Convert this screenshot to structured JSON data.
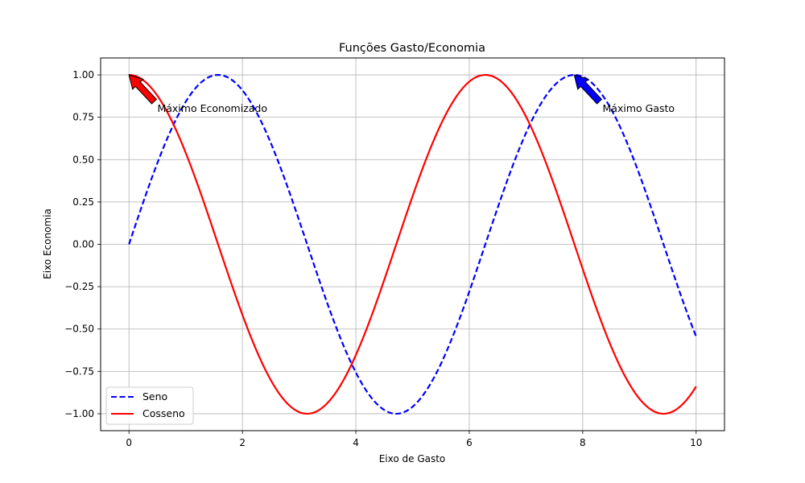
{
  "chart_data": {
    "type": "line",
    "title": "Funções Gasto/Economia",
    "xlabel": "Eixo de Gasto",
    "ylabel": "Eixo Economia",
    "xlim": [
      -0.5,
      10.5
    ],
    "ylim": [
      -1.1,
      1.1
    ],
    "xticks": [
      0,
      2,
      4,
      6,
      8,
      10
    ],
    "xtick_labels": [
      "0",
      "2",
      "4",
      "6",
      "8",
      "10"
    ],
    "yticks": [
      1.0,
      0.75,
      0.5,
      0.25,
      0.0,
      -0.25,
      -0.5,
      -0.75,
      -1.0
    ],
    "ytick_labels": [
      "1.00",
      "0.75",
      "0.50",
      "0.25",
      "0.00",
      "−0.25",
      "−0.50",
      "−0.75",
      "−1.00"
    ],
    "grid": true,
    "legend_position": "lower-left",
    "x": [
      0,
      0.5,
      1,
      1.5,
      2,
      2.5,
      3,
      3.5,
      4,
      4.5,
      5,
      5.5,
      6,
      6.5,
      7,
      7.5,
      8,
      8.5,
      9,
      9.5,
      10
    ],
    "series": [
      {
        "name": "Seno",
        "color": "#0000ff",
        "line_style": "dashed",
        "values": [
          0.0,
          0.479,
          0.841,
          0.997,
          0.909,
          0.598,
          0.141,
          -0.351,
          -0.757,
          -0.978,
          -0.959,
          -0.706,
          -0.279,
          0.215,
          0.657,
          0.938,
          0.989,
          0.798,
          0.412,
          -0.075,
          -0.544
        ]
      },
      {
        "name": "Cosseno",
        "color": "#ff0000",
        "line_style": "solid",
        "values": [
          1.0,
          0.878,
          0.54,
          0.071,
          -0.416,
          -0.801,
          -0.99,
          -0.936,
          -0.654,
          -0.211,
          0.284,
          0.709,
          0.96,
          0.977,
          0.754,
          0.347,
          -0.146,
          -0.602,
          -0.911,
          -0.997,
          -0.839
        ]
      }
    ],
    "annotations": [
      {
        "text": "Máximo Economizado",
        "point": [
          0,
          1.0
        ],
        "text_at": [
          0.5,
          0.8
        ],
        "arrow_color": "#ff0000"
      },
      {
        "text": "Máximo Gasto",
        "point": [
          7.85,
          1.0
        ],
        "text_at": [
          8.35,
          0.8
        ],
        "arrow_color": "#0000ff"
      }
    ]
  }
}
